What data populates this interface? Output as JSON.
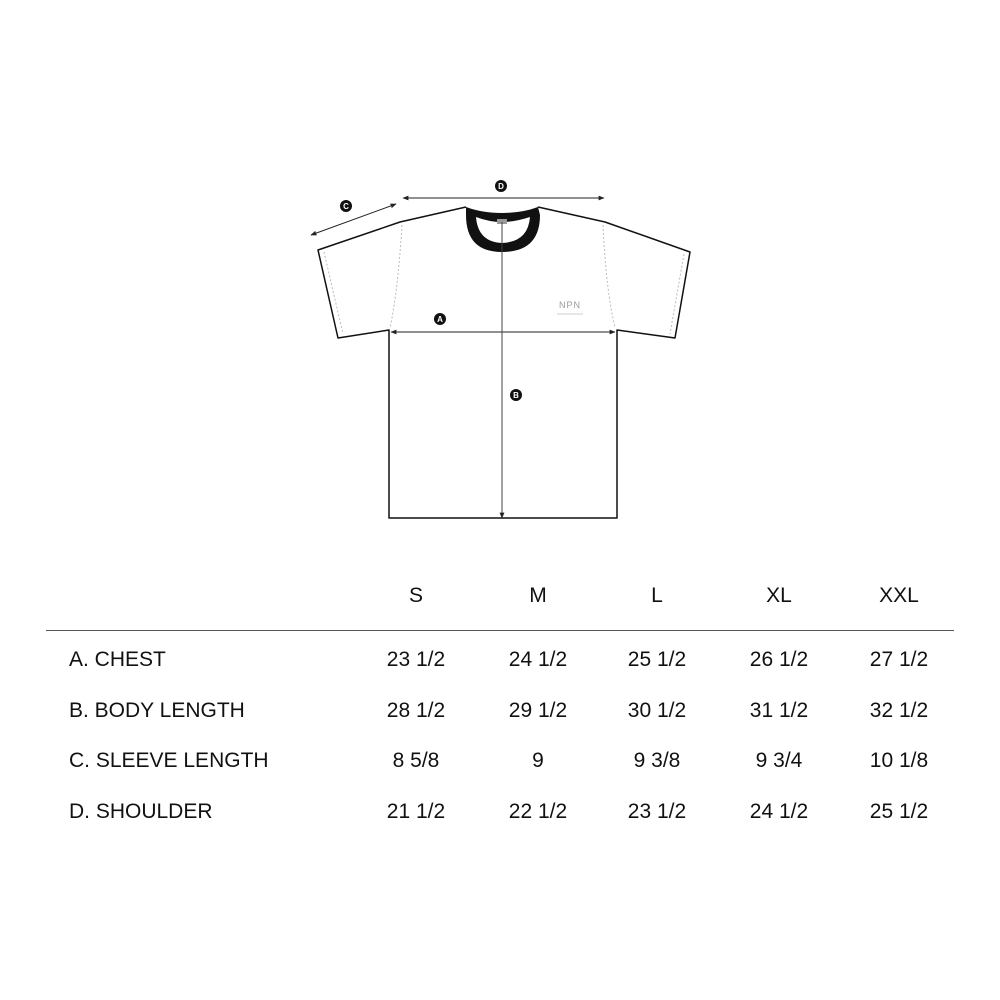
{
  "diagram": {
    "markers": [
      "A",
      "B",
      "C",
      "D"
    ],
    "logo_text": "NPN",
    "collar_color": "#111111"
  },
  "table": {
    "sizes": [
      "S",
      "M",
      "L",
      "XL",
      "XXL"
    ],
    "rows": [
      {
        "label": "A. CHEST",
        "values": [
          "23 1/2",
          "24 1/2",
          "25 1/2",
          "26 1/2",
          "27 1/2"
        ]
      },
      {
        "label": "B. BODY LENGTH",
        "values": [
          "28 1/2",
          "29 1/2",
          "30 1/2",
          "31 1/2",
          "32 1/2"
        ]
      },
      {
        "label": "C. SLEEVE LENGTH",
        "values": [
          "8 5/8",
          "9",
          "9 3/8",
          "9 3/4",
          "10 1/8"
        ]
      },
      {
        "label": "D. SHOULDER",
        "values": [
          "21 1/2",
          "22 1/2",
          "23 1/2",
          "24 1/2",
          "25 1/2"
        ]
      }
    ]
  }
}
